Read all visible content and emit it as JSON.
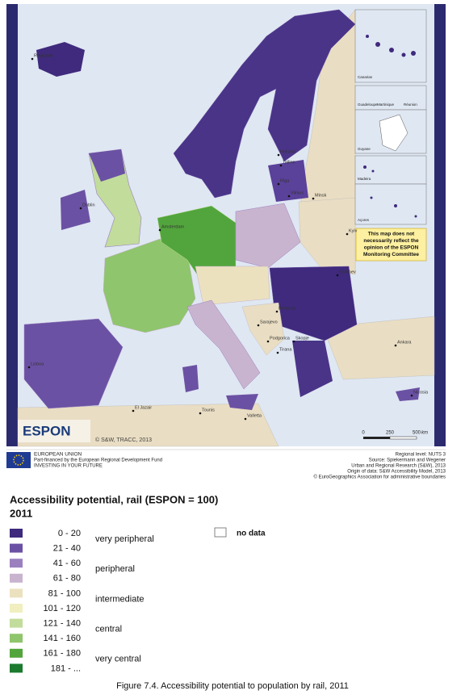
{
  "map": {
    "cities": [
      "Reykjavík",
      "Helsinki",
      "Tallinn",
      "Riga",
      "Vilnius",
      "Minsk",
      "Kyiv",
      "Kishinev",
      "Amsterdam",
      "Beograd",
      "Sarajevo",
      "Podgorica",
      "Skopje",
      "Tirana",
      "Ankara",
      "Nicosia",
      "El Jazair",
      "Tounis",
      "Valletta",
      "Lisboa",
      "Dublin"
    ],
    "insets": [
      "Canarias",
      "Guadeloupe",
      "Martinique",
      "Réunion",
      "Guyane",
      "Madeira",
      "Açores"
    ],
    "note": [
      "This map does not",
      "necessarily reflect the",
      "opinion of the ESPON",
      "Monitoring Committee"
    ],
    "logo": "ESPON",
    "copyright": "© S&W, TRACC, 2013",
    "scale": [
      "0",
      "250",
      "500",
      "km"
    ]
  },
  "footer": {
    "eu": [
      "EUROPEAN UNION",
      "Part-financed by the European Regional Development Fund",
      "INVESTING IN YOUR FUTURE"
    ],
    "sources": [
      "Regional level: NUTS 3",
      "Source: Spiekermann and Wegener",
      "Urban and Regional Research (S&W), 2013",
      "Origin of data: S&W Accessibility Model, 2013",
      "© EuroGeographics Association for administrative boundaries"
    ]
  },
  "legend": {
    "title": "Accessibility potential, rail (ESPON = 100)",
    "year": "2011",
    "classes": [
      {
        "range": "0 -  20",
        "color": "#3f2a7d"
      },
      {
        "range": "21 -  40",
        "color": "#6b51a3"
      },
      {
        "range": "41 -  60",
        "color": "#9b80c0"
      },
      {
        "range": "61 -  80",
        "color": "#c9b4cf"
      },
      {
        "range": "81 - 100",
        "color": "#ece1bf"
      },
      {
        "range": "101 - 120",
        "color": "#f1efc0"
      },
      {
        "range": "121 - 140",
        "color": "#c2dc9b"
      },
      {
        "range": "141 - 160",
        "color": "#8fc56c"
      },
      {
        "range": "161 - 180",
        "color": "#52a53d"
      },
      {
        "range": "181 - ...",
        "color": "#1c7a2e"
      }
    ],
    "descriptions": [
      "very peripheral",
      "peripheral",
      "intermediate",
      "central",
      "very central"
    ],
    "no_data": "no data"
  },
  "caption": "Figure 7.4. Accessibility potential to population by rail, 2011"
}
